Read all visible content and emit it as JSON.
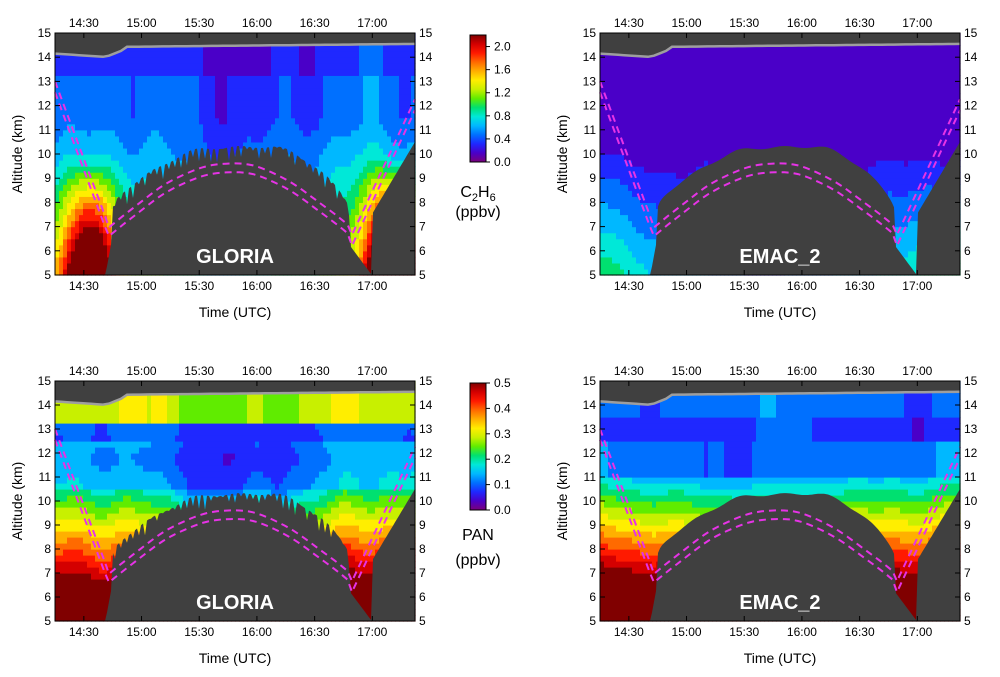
{
  "figure": {
    "colors": {
      "terrain_mask": "#404040",
      "tropopause_line": "#9e9e9e",
      "contour_line": "#e633e6",
      "axis": "#000000"
    },
    "colormap": [
      "#7a007a",
      "#4a00c8",
      "#1f28ff",
      "#0070ff",
      "#00b8ff",
      "#00e8d8",
      "#00e070",
      "#60ec00",
      "#c8f000",
      "#ffee00",
      "#ffb000",
      "#ff6a00",
      "#ff1a00",
      "#d40000",
      "#800000"
    ]
  },
  "chart_data": [
    {
      "type": "heatmap",
      "panel": "GLORIA",
      "label": "GLORIA",
      "species": "C2H6",
      "xlabel": "Time (UTC)",
      "ylabel": "Altitude (km)",
      "x_ticks": [
        "14:30",
        "15:00",
        "15:30",
        "16:00",
        "16:30",
        "17:00"
      ],
      "x_tick_hours": [
        14.5,
        15.0,
        15.5,
        16.0,
        16.5,
        17.0
      ],
      "xlim_hours": [
        14.25,
        17.37
      ],
      "y_ticks": [
        "5",
        "6",
        "7",
        "8",
        "9",
        "10",
        "11",
        "12",
        "13",
        "14",
        "15"
      ],
      "ylim": [
        5,
        15
      ],
      "grid": false
    },
    {
      "type": "heatmap",
      "panel": "EMAC_2",
      "label": "EMAC_2",
      "species": "C2H6",
      "xlabel": "Time (UTC)",
      "ylabel": "Altitude (km)",
      "x_ticks": [
        "14:30",
        "15:00",
        "15:30",
        "16:00",
        "16:30",
        "17:00"
      ],
      "x_tick_hours": [
        14.5,
        15.0,
        15.5,
        16.0,
        16.5,
        17.0
      ],
      "xlim_hours": [
        14.25,
        17.37
      ],
      "y_ticks": [
        "5",
        "6",
        "7",
        "8",
        "9",
        "10",
        "11",
        "12",
        "13",
        "14",
        "15"
      ],
      "ylim": [
        5,
        15
      ],
      "grid": false
    },
    {
      "type": "heatmap",
      "panel": "GLORIA",
      "label": "GLORIA",
      "species": "PAN",
      "xlabel": "Time (UTC)",
      "ylabel": "Altitude (km)",
      "x_ticks": [
        "14:30",
        "15:00",
        "15:30",
        "16:00",
        "16:30",
        "17:00"
      ],
      "x_tick_hours": [
        14.5,
        15.0,
        15.5,
        16.0,
        16.5,
        17.0
      ],
      "xlim_hours": [
        14.25,
        17.37
      ],
      "y_ticks": [
        "5",
        "6",
        "7",
        "8",
        "9",
        "10",
        "11",
        "12",
        "13",
        "14",
        "15"
      ],
      "ylim": [
        5,
        15
      ],
      "grid": false
    },
    {
      "type": "heatmap",
      "panel": "EMAC_2",
      "label": "EMAC_2",
      "species": "PAN",
      "xlabel": "Time (UTC)",
      "ylabel": "Altitude (km)",
      "x_ticks": [
        "14:30",
        "15:00",
        "15:30",
        "16:00",
        "16:30",
        "17:00"
      ],
      "x_tick_hours": [
        14.5,
        15.0,
        15.5,
        16.0,
        16.5,
        17.0
      ],
      "xlim_hours": [
        14.25,
        17.37
      ],
      "y_ticks": [
        "5",
        "6",
        "7",
        "8",
        "9",
        "10",
        "11",
        "12",
        "13",
        "14",
        "15"
      ],
      "ylim": [
        5,
        15
      ],
      "grid": false
    }
  ],
  "colorbars": [
    {
      "species_main": "C",
      "species_sub1": "2",
      "species_mid": "H",
      "species_sub2": "6",
      "units": "(ppbv)",
      "range": [
        0,
        2.2
      ],
      "ticks": [
        "0.0",
        "0.4",
        "0.8",
        "1.2",
        "1.6",
        "2.0"
      ],
      "tick_values": [
        0.0,
        0.4,
        0.8,
        1.2,
        1.6,
        2.0
      ]
    },
    {
      "species_main": "PAN",
      "units": "(ppbv)",
      "range": [
        0,
        0.5
      ],
      "ticks": [
        "0.0",
        "0.1",
        "0.2",
        "0.3",
        "0.4",
        "0.5"
      ],
      "tick_values": [
        0.0,
        0.1,
        0.2,
        0.3,
        0.4,
        0.5
      ]
    }
  ]
}
